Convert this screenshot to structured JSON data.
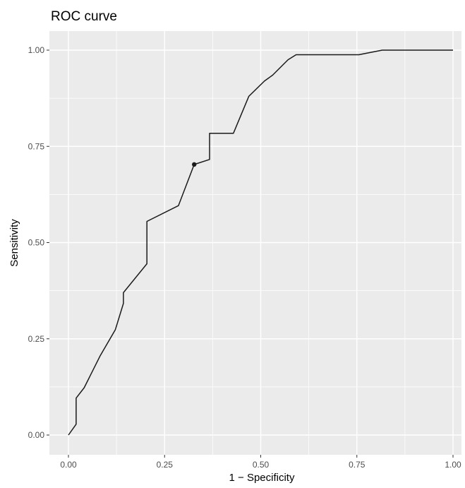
{
  "chart_data": {
    "type": "line",
    "title": "ROC curve",
    "xlabel": "1 − Specificity",
    "ylabel": "Sensitivity",
    "xlim": [
      0,
      1
    ],
    "ylim": [
      0,
      1
    ],
    "x_ticks": [
      0,
      0.25,
      0.5,
      0.75,
      1
    ],
    "x_tick_labels": [
      "0.00",
      "0.25",
      "0.50",
      "0.75",
      "1.00"
    ],
    "y_ticks": [
      0,
      0.25,
      0.5,
      0.75,
      1
    ],
    "y_tick_labels": [
      "0.00",
      "0.25",
      "0.50",
      "0.75",
      "1.00"
    ],
    "grid": true,
    "series": [
      {
        "x": [
          0.0,
          0.02,
          0.02,
          0.041,
          0.082,
          0.122,
          0.143,
          0.143,
          0.204,
          0.204,
          0.286,
          0.327,
          0.367,
          0.367,
          0.429,
          0.469,
          0.51,
          0.531,
          0.571,
          0.592,
          0.755,
          0.816,
          1.0
        ],
        "y": [
          0.0,
          0.028,
          0.096,
          0.123,
          0.205,
          0.274,
          0.342,
          0.37,
          0.445,
          0.555,
          0.596,
          0.703,
          0.716,
          0.784,
          0.784,
          0.88,
          0.92,
          0.935,
          0.975,
          0.988,
          0.988,
          1.0,
          1.0
        ]
      }
    ],
    "highlight_point": {
      "x": 0.327,
      "y": 0.703
    }
  },
  "style": {
    "panel_background": "#ebebeb",
    "grid_color": "#ffffff",
    "line_color": "#1a1a1a",
    "tick_label_color": "#4d4d4d",
    "text_color": "#000000"
  }
}
